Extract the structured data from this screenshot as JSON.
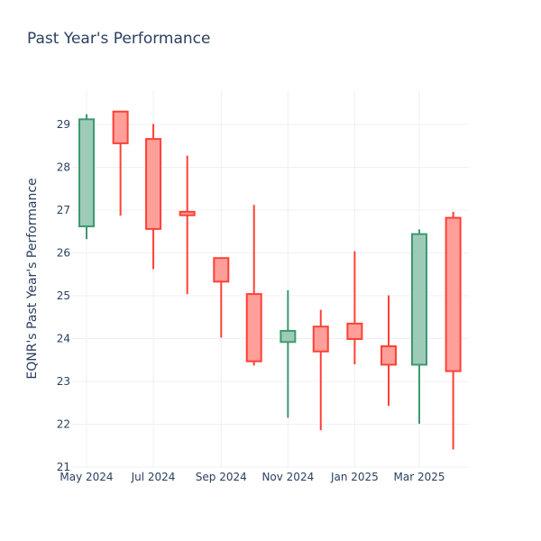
{
  "chart_data": {
    "type": "candlestick",
    "title": "Past Year's Performance",
    "ylabel": "EQNR's Past Year's Performance",
    "xlabel": "",
    "ylim": [
      21,
      29.8
    ],
    "yticks": [
      21,
      22,
      23,
      24,
      25,
      26,
      27,
      28,
      29
    ],
    "xticks": [
      {
        "label": "May 2024",
        "date": "2024-05-01"
      },
      {
        "label": "Jul 2024",
        "date": "2024-07-01"
      },
      {
        "label": "Sep 2024",
        "date": "2024-09-01"
      },
      {
        "label": "Nov 2024",
        "date": "2024-11-01"
      },
      {
        "label": "Jan 2025",
        "date": "2025-01-01"
      },
      {
        "label": "Mar 2025",
        "date": "2025-03-01"
      }
    ],
    "grid": true,
    "colors": {
      "increasing": "#3d9970",
      "increasing_fill": "#9ecbb7",
      "decreasing": "#ff4136",
      "decreasing_fill": "#ff9f9a"
    },
    "candles": [
      {
        "date": "2024-05-01",
        "open": 26.62,
        "high": 29.24,
        "low": 26.32,
        "close": 29.12
      },
      {
        "date": "2024-06-01",
        "open": 29.3,
        "high": 29.3,
        "low": 26.87,
        "close": 28.56
      },
      {
        "date": "2024-07-01",
        "open": 28.66,
        "high": 29.01,
        "low": 25.62,
        "close": 26.56
      },
      {
        "date": "2024-08-01",
        "open": 26.96,
        "high": 28.27,
        "low": 25.04,
        "close": 26.88
      },
      {
        "date": "2024-09-01",
        "open": 25.88,
        "high": 25.88,
        "low": 24.02,
        "close": 25.33
      },
      {
        "date": "2024-10-01",
        "open": 25.04,
        "high": 27.12,
        "low": 23.37,
        "close": 23.47
      },
      {
        "date": "2024-11-01",
        "open": 23.92,
        "high": 25.13,
        "low": 22.15,
        "close": 24.18
      },
      {
        "date": "2024-12-01",
        "open": 24.28,
        "high": 24.67,
        "low": 21.86,
        "close": 23.7
      },
      {
        "date": "2025-01-01",
        "open": 24.35,
        "high": 26.04,
        "low": 23.4,
        "close": 23.99
      },
      {
        "date": "2025-02-01",
        "open": 23.82,
        "high": 25.01,
        "low": 22.43,
        "close": 23.39
      },
      {
        "date": "2025-03-01",
        "open": 23.39,
        "high": 26.55,
        "low": 22.01,
        "close": 26.44
      },
      {
        "date": "2025-04-01",
        "open": 26.82,
        "high": 26.96,
        "low": 21.41,
        "close": 23.24
      }
    ]
  }
}
